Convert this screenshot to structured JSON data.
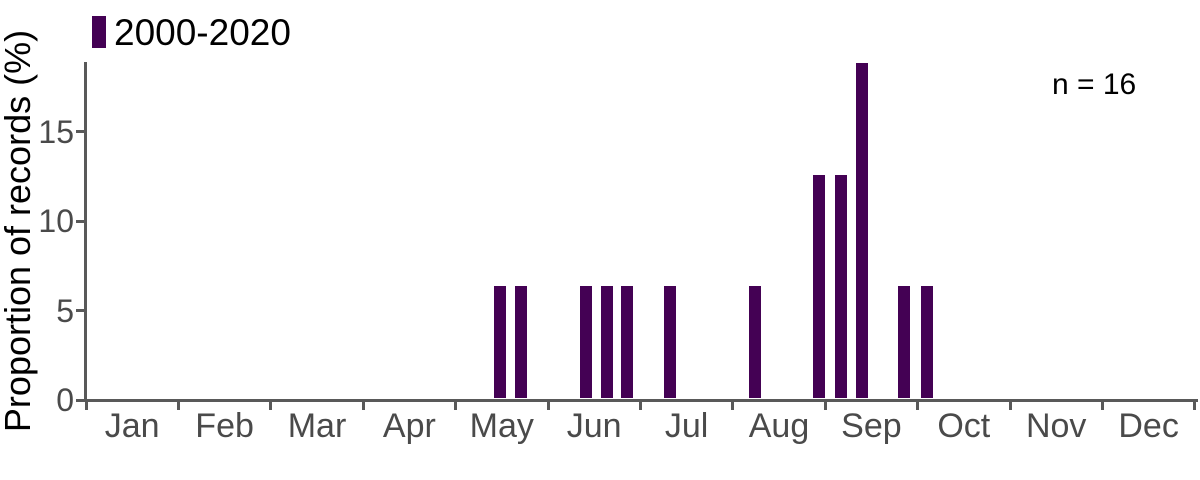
{
  "chart_data": {
    "type": "bar",
    "title": "",
    "xlabel": "",
    "ylabel": "Proportion of records (%)",
    "annotation": "n = 16",
    "n_total": 16,
    "legend": {
      "label": "2000-2020",
      "color": "#440154",
      "position": "top-left"
    },
    "categories": [
      "Jan",
      "Feb",
      "Mar",
      "Apr",
      "May",
      "Jun",
      "Jul",
      "Aug",
      "Sep",
      "Oct",
      "Nov",
      "Dec"
    ],
    "yticks": [
      0,
      5,
      10,
      15
    ],
    "ylim": [
      0,
      19
    ],
    "grid": false,
    "axis_color": "#595959",
    "tick_label_color": "#4a4a4a",
    "bars": [
      {
        "x_month": 4.48,
        "value": 6.25,
        "count": 1
      },
      {
        "x_month": 4.71,
        "value": 6.25,
        "count": 1
      },
      {
        "x_month": 5.41,
        "value": 6.25,
        "count": 1
      },
      {
        "x_month": 5.64,
        "value": 6.25,
        "count": 1
      },
      {
        "x_month": 5.86,
        "value": 6.25,
        "count": 1
      },
      {
        "x_month": 6.32,
        "value": 6.25,
        "count": 1
      },
      {
        "x_month": 7.24,
        "value": 6.25,
        "count": 1
      },
      {
        "x_month": 7.93,
        "value": 12.5,
        "count": 2
      },
      {
        "x_month": 8.17,
        "value": 12.5,
        "count": 2
      },
      {
        "x_month": 8.4,
        "value": 18.75,
        "count": 3
      },
      {
        "x_month": 8.85,
        "value": 6.25,
        "count": 1
      },
      {
        "x_month": 9.1,
        "value": 6.25,
        "count": 1
      }
    ]
  }
}
